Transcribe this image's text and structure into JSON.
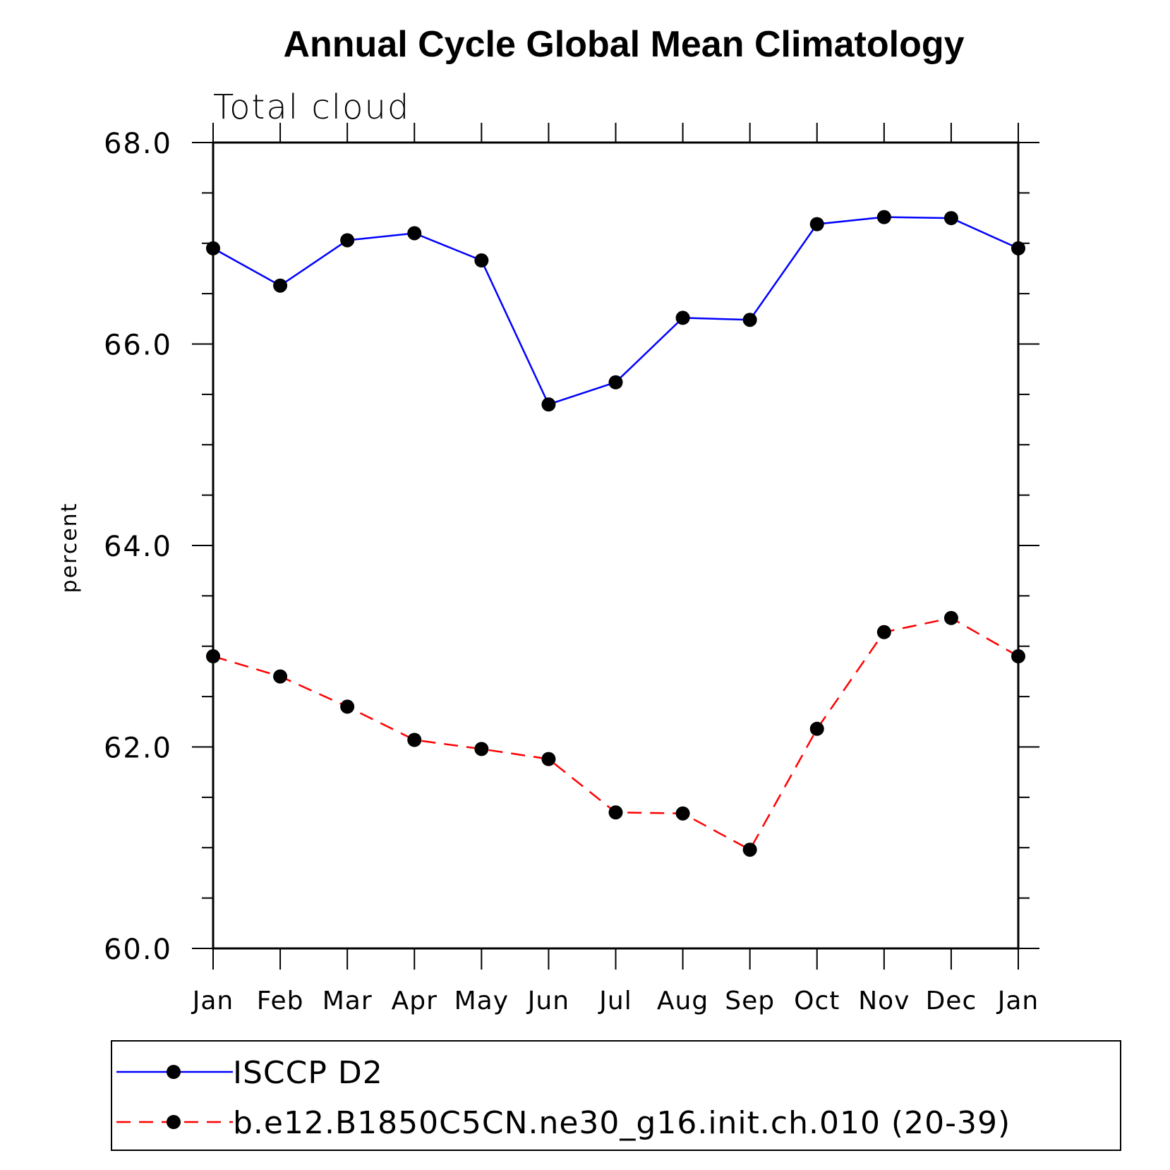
{
  "chart_data": {
    "type": "line",
    "title": "Annual Cycle Global Mean Climatology",
    "subtitle": "Total cloud",
    "xlabel": "",
    "ylabel": "percent",
    "categories": [
      "Jan",
      "Feb",
      "Mar",
      "Apr",
      "May",
      "Jun",
      "Jul",
      "Aug",
      "Sep",
      "Oct",
      "Nov",
      "Dec",
      "Jan"
    ],
    "ylim": [
      60.0,
      68.0
    ],
    "yticks": [
      "60.0",
      "62.0",
      "64.0",
      "66.0",
      "68.0"
    ],
    "grid": false,
    "legend_position": "bottom",
    "series": [
      {
        "name": "ISCCP D2",
        "color": "#0000ff",
        "line_style": "solid",
        "values": [
          66.95,
          66.58,
          67.03,
          67.1,
          66.83,
          65.4,
          65.62,
          66.26,
          66.24,
          67.19,
          67.26,
          67.25,
          66.95
        ]
      },
      {
        "name": "b.e12.B1850C5CN.ne30_g16.init.ch.010 (20-39)",
        "color": "#ff0000",
        "line_style": "dashed",
        "values": [
          62.9,
          62.7,
          62.4,
          62.07,
          61.98,
          61.88,
          61.35,
          61.34,
          60.98,
          62.18,
          63.14,
          63.28,
          62.9
        ]
      }
    ]
  }
}
